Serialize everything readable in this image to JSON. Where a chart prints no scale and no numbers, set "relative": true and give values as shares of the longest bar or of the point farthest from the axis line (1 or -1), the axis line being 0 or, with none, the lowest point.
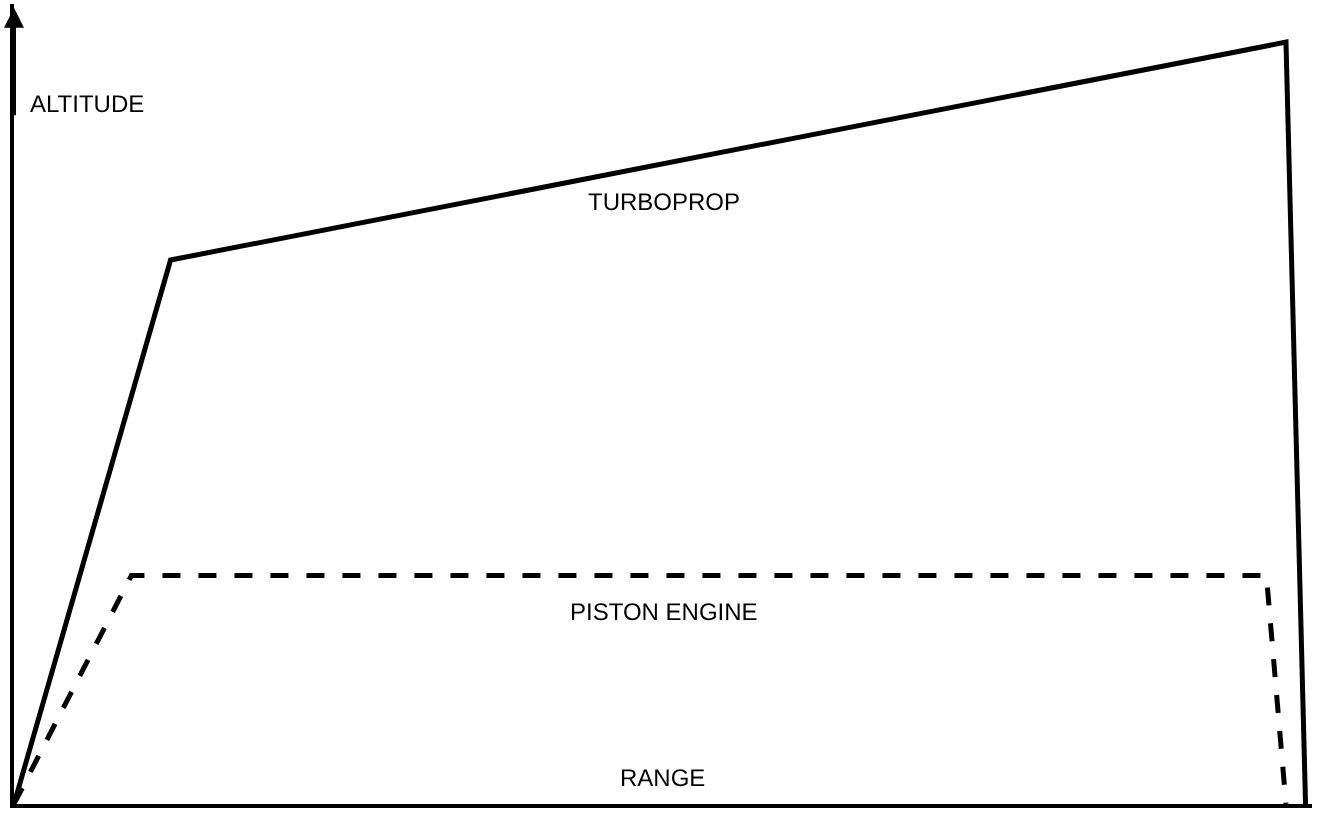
{
  "chart_data": {
    "type": "line",
    "relative": true,
    "xlabel": "RANGE",
    "ylabel": "ALTITUDE",
    "legend": false,
    "grid": false,
    "marker": "none",
    "categories": [
      null,
      null,
      null,
      null,
      null,
      null,
      null,
      null,
      null,
      null,
      null,
      null,
      null,
      null,
      null,
      null,
      null,
      null,
      null,
      null,
      null,
      null,
      null,
      null,
      null,
      null,
      null,
      null,
      null,
      null,
      null,
      null,
      null,
      null,
      null,
      null,
      null,
      null,
      null,
      null,
      null,
      null,
      null,
      null,
      null,
      null,
      null,
      null,
      null,
      null,
      null,
      null,
      null,
      null,
      null,
      null,
      null,
      null,
      null,
      null,
      null,
      null,
      null,
      null,
      null,
      null,
      null
    ],
    "series": [
      {
        "name": "TURBOPROP",
        "color": "#000000",
        "line_style": "solid",
        "values": [
          0,
          null,
          null,
          null,
          null,
          null,
          null,
          null,
          0.714,
          null,
          null,
          null,
          null,
          null,
          null,
          null,
          null,
          null,
          null,
          null,
          null,
          null,
          null,
          null,
          null,
          null,
          null,
          null,
          null,
          null,
          null,
          null,
          null,
          null,
          null,
          null,
          null,
          null,
          null,
          null,
          null,
          null,
          null,
          null,
          null,
          null,
          null,
          null,
          null,
          null,
          null,
          null,
          null,
          null,
          null,
          null,
          null,
          null,
          null,
          null,
          null,
          null,
          null,
          null,
          null,
          1,
          0
        ]
      },
      {
        "name": "PISTON ENGINE",
        "color": "#000000",
        "line_style": "dashed",
        "values": [
          0,
          null,
          null,
          null,
          null,
          null,
          0.3,
          null,
          null,
          null,
          null,
          null,
          null,
          null,
          null,
          null,
          null,
          null,
          null,
          null,
          null,
          null,
          null,
          null,
          null,
          null,
          null,
          null,
          null,
          null,
          null,
          null,
          null,
          null,
          null,
          null,
          null,
          null,
          null,
          null,
          null,
          null,
          null,
          null,
          null,
          null,
          null,
          null,
          null,
          null,
          null,
          null,
          null,
          null,
          null,
          null,
          null,
          null,
          null,
          null,
          null,
          null,
          null,
          null,
          0.3,
          0,
          null
        ]
      }
    ]
  }
}
